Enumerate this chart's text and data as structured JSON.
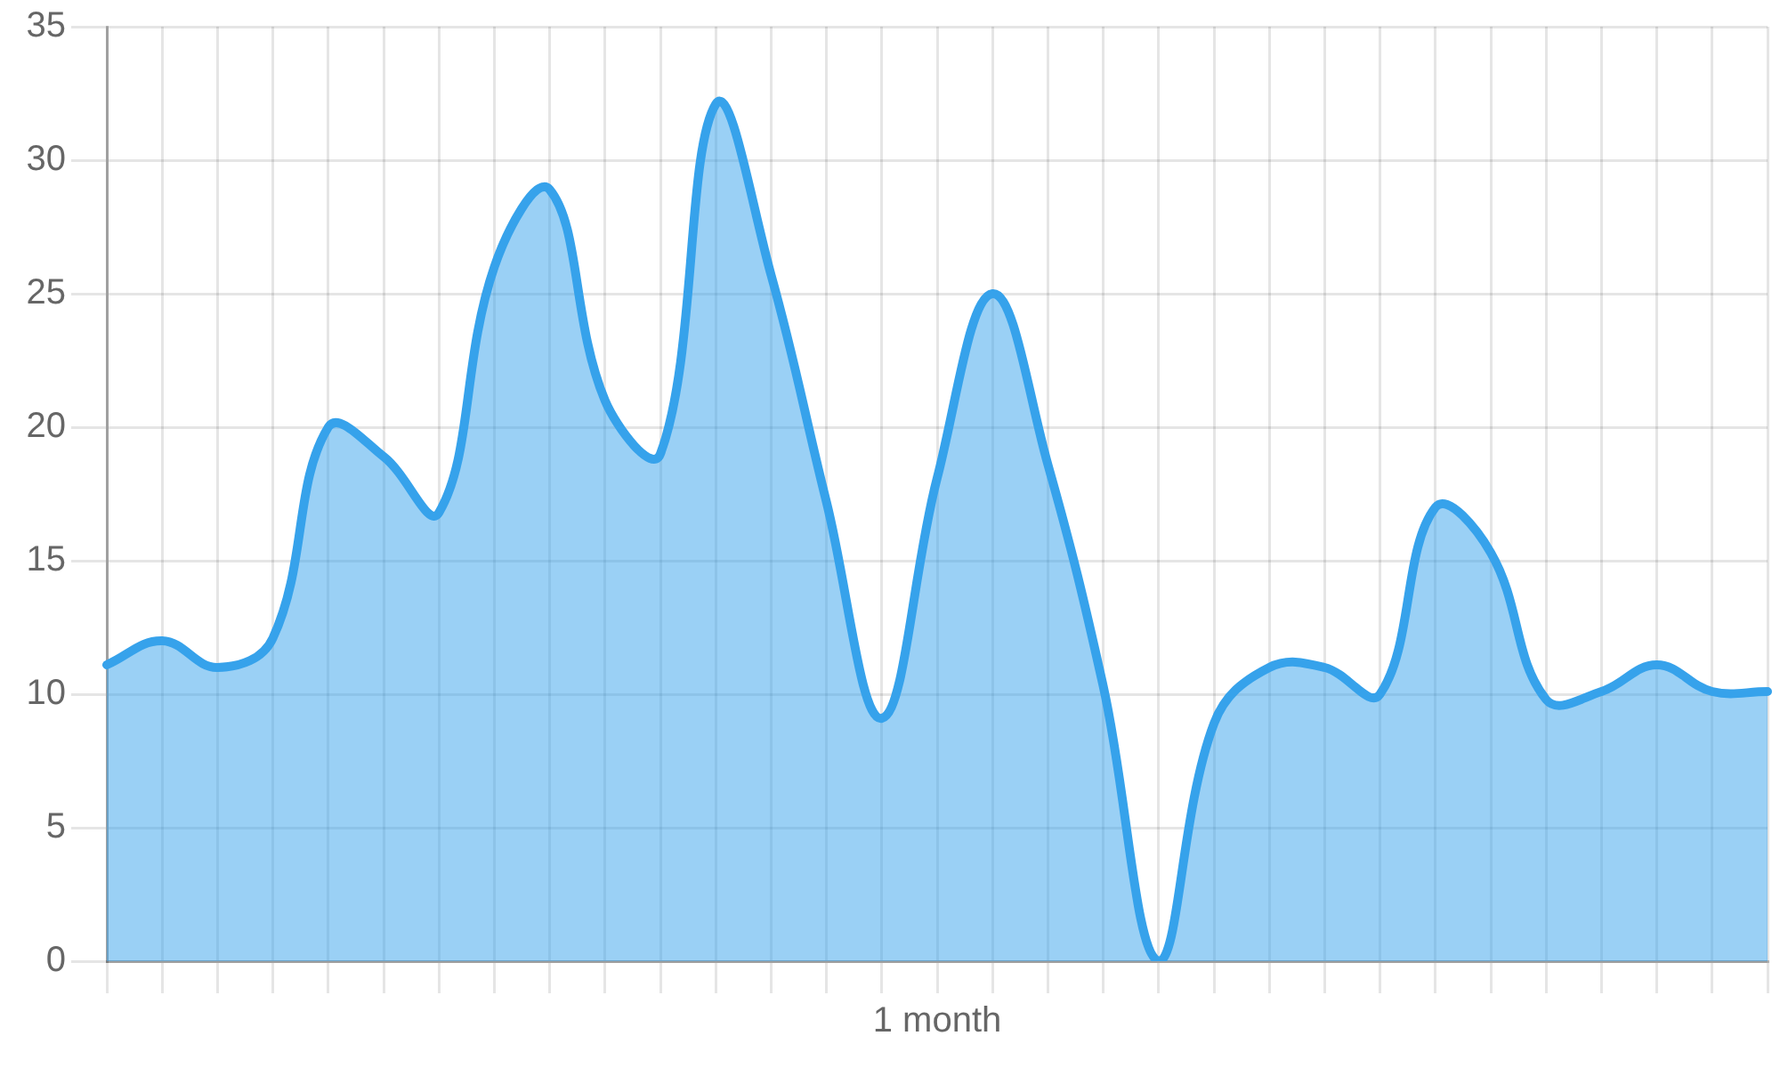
{
  "chart_data": {
    "type": "area",
    "xlabel": "1 month",
    "color": "#36a2eb",
    "categories": [
      null,
      null,
      null,
      null,
      null,
      null,
      null,
      null,
      null,
      null,
      null,
      null,
      null,
      null,
      null,
      null,
      null,
      null,
      null,
      null,
      null,
      null,
      null,
      null,
      null,
      null,
      null,
      null,
      null,
      null,
      null
    ],
    "values": [
      11.1,
      12.0,
      11.0,
      12.1,
      20.0,
      18.9,
      16.8,
      26.0,
      28.9,
      21.0,
      19.0,
      32.1,
      25.7,
      17.2,
      9.1,
      18.1,
      25.0,
      18.6,
      10.3,
      0,
      8.9,
      11.0,
      11.0,
      10.0,
      17.0,
      15.3,
      9.8,
      10.1,
      11.1,
      10.1,
      10.1
    ],
    "ylim": [
      0,
      35
    ],
    "yticks": [
      0,
      5,
      10,
      15,
      20,
      25,
      30,
      35
    ],
    "grid": true,
    "legend": false,
    "tick_labels": "y",
    "marker": "none",
    "line_style": "solid"
  }
}
